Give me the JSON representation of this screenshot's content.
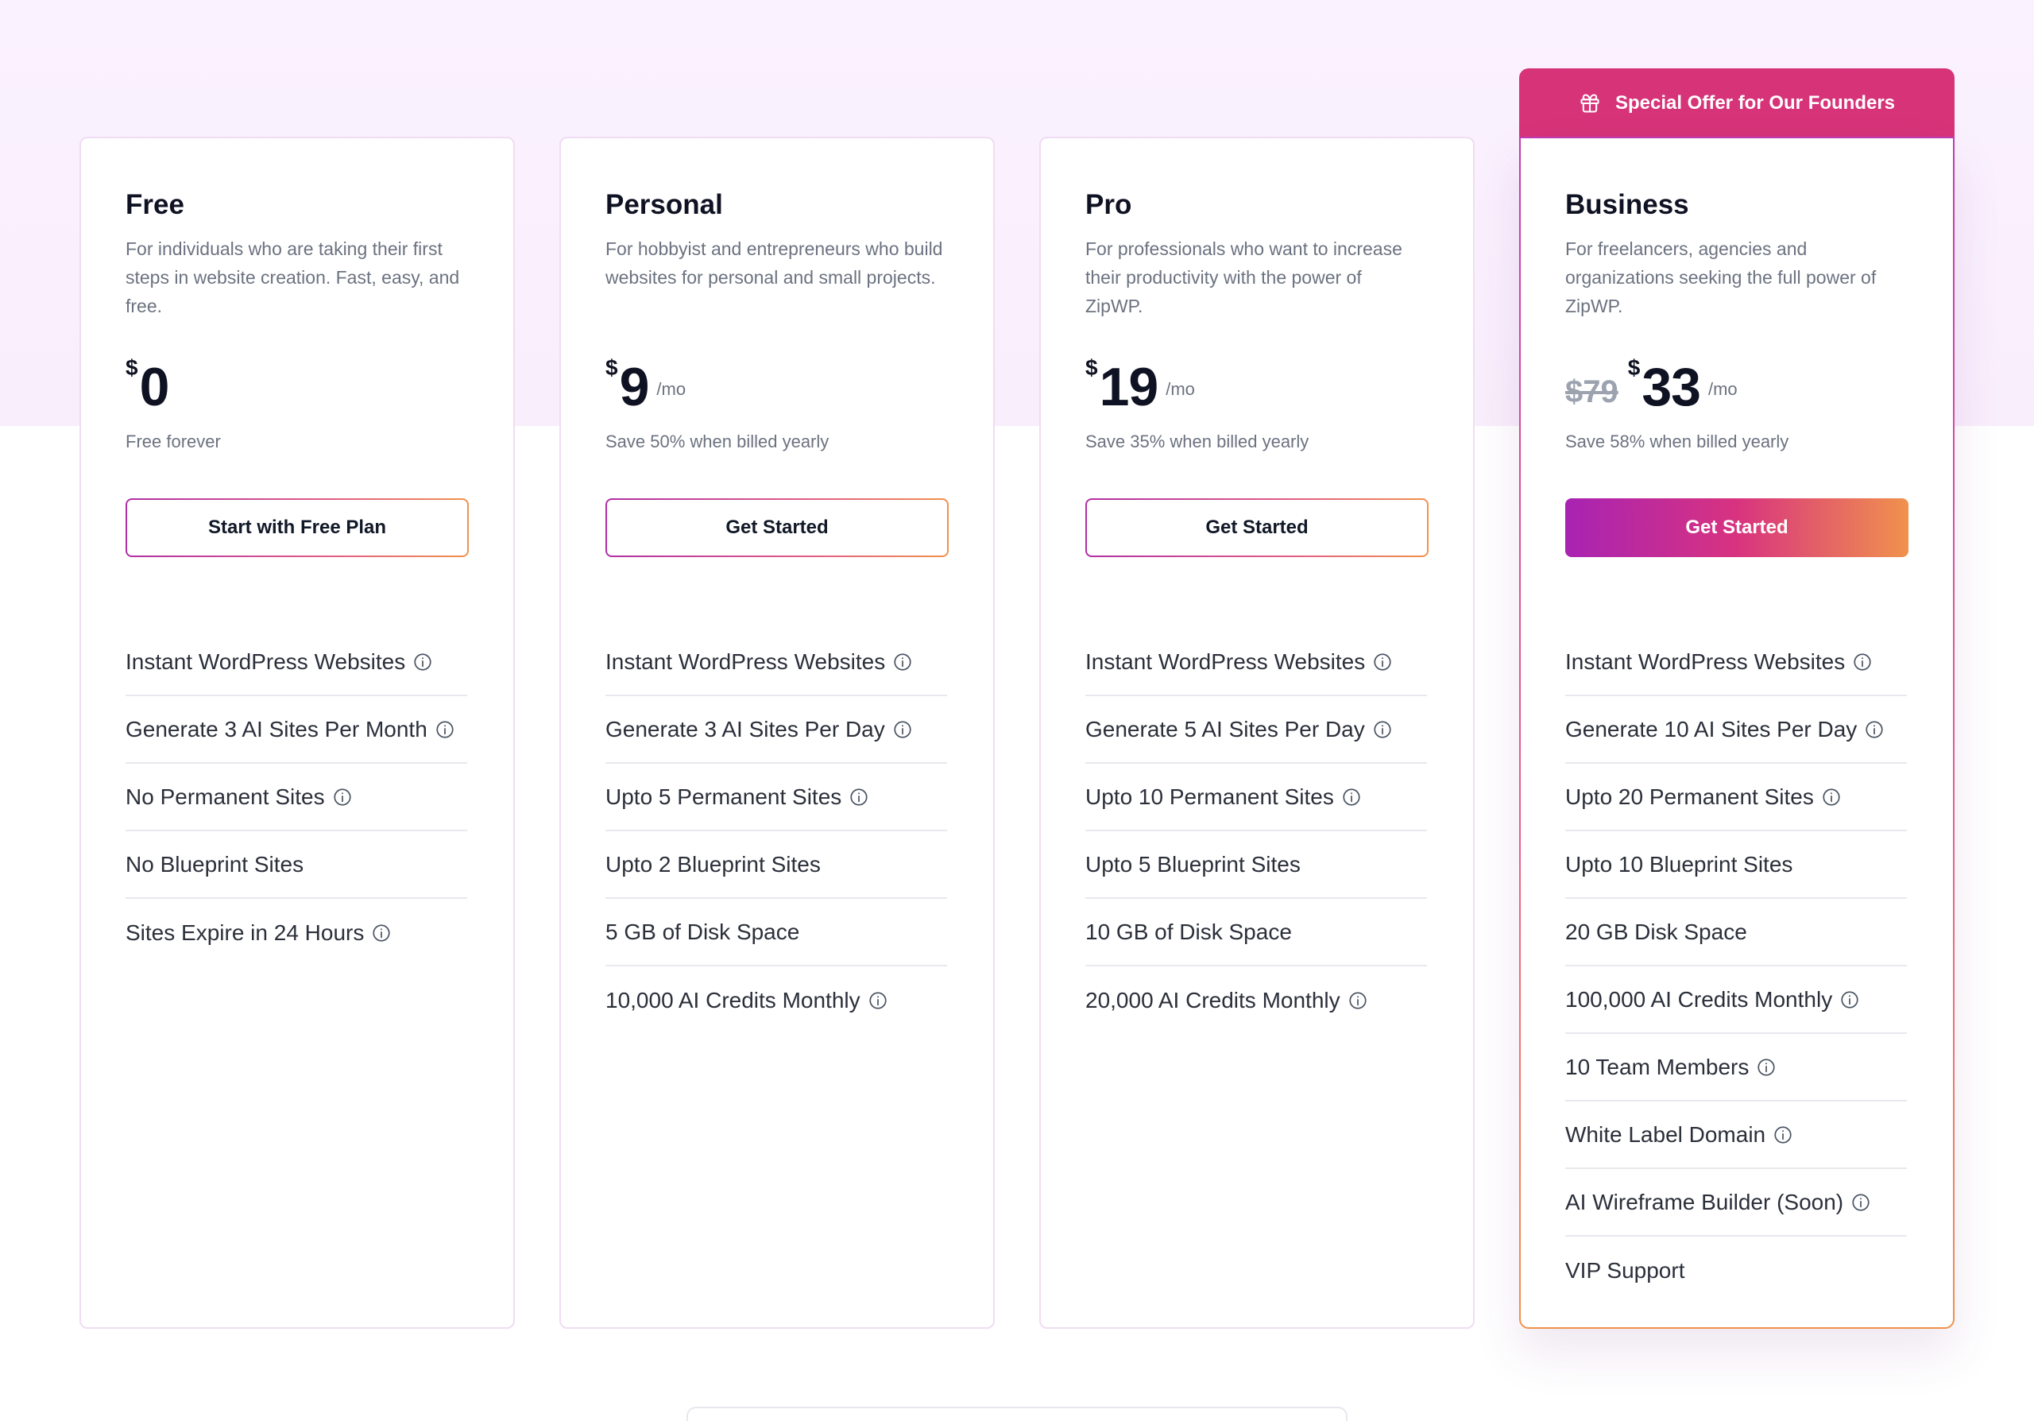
{
  "offer_banner": {
    "label": "Special Offer for Our Founders",
    "icon": "gift-icon"
  },
  "plans": [
    {
      "id": "free",
      "name": "Free",
      "description": "For individuals who are taking their first steps in website creation. Fast, easy, and free.",
      "old_price": "",
      "currency": "$",
      "amount": "0",
      "per": "",
      "billing_note": "Free forever",
      "cta_label": "Start with Free Plan",
      "featured": false,
      "features": [
        {
          "label": "Instant WordPress Websites",
          "info": true
        },
        {
          "label": "Generate 3 AI Sites Per Month",
          "info": true
        },
        {
          "label": "No Permanent Sites",
          "info": true
        },
        {
          "label": "No Blueprint Sites",
          "info": false
        },
        {
          "label": "Sites Expire in 24 Hours",
          "info": true
        }
      ]
    },
    {
      "id": "personal",
      "name": "Personal",
      "description": "For hobbyist and entrepreneurs who build websites for personal and small projects.",
      "old_price": "",
      "currency": "$",
      "amount": "9",
      "per": "/mo",
      "billing_note": "Save 50% when billed yearly",
      "cta_label": "Get Started",
      "featured": false,
      "features": [
        {
          "label": "Instant WordPress Websites",
          "info": true
        },
        {
          "label": "Generate 3 AI Sites Per Day",
          "info": true
        },
        {
          "label": "Upto 5 Permanent Sites",
          "info": true
        },
        {
          "label": "Upto 2 Blueprint Sites",
          "info": false
        },
        {
          "label": "5 GB of Disk Space",
          "info": false
        },
        {
          "label": "10,000 AI Credits Monthly",
          "info": true
        }
      ]
    },
    {
      "id": "pro",
      "name": "Pro",
      "description": "For professionals who want to increase their productivity with the power of ZipWP.",
      "old_price": "",
      "currency": "$",
      "amount": "19",
      "per": "/mo",
      "billing_note": "Save 35% when billed yearly",
      "cta_label": "Get Started",
      "featured": false,
      "features": [
        {
          "label": "Instant WordPress Websites",
          "info": true
        },
        {
          "label": "Generate 5 AI Sites Per Day",
          "info": true
        },
        {
          "label": "Upto 10 Permanent Sites",
          "info": true
        },
        {
          "label": "Upto 5 Blueprint Sites",
          "info": false
        },
        {
          "label": "10 GB of Disk Space",
          "info": false
        },
        {
          "label": "20,000 AI Credits Monthly",
          "info": true
        }
      ]
    },
    {
      "id": "business",
      "name": "Business",
      "description": "For freelancers, agencies and organizations seeking the full power of ZipWP.",
      "old_price": "$79",
      "currency": "$",
      "amount": "33",
      "per": "/mo",
      "billing_note": "Save 58% when billed yearly",
      "cta_label": "Get Started",
      "featured": true,
      "features": [
        {
          "label": "Instant WordPress Websites",
          "info": true
        },
        {
          "label": "Generate 10 AI Sites Per Day",
          "info": true
        },
        {
          "label": "Upto 20 Permanent Sites",
          "info": true
        },
        {
          "label": "Upto 10 Blueprint Sites",
          "info": false
        },
        {
          "label": "20 GB Disk Space",
          "info": false
        },
        {
          "label": "100,000 AI Credits Monthly",
          "info": true
        },
        {
          "label": "10 Team Members",
          "info": true
        },
        {
          "label": "White Label Domain",
          "info": true
        },
        {
          "label": "AI Wireframe Builder (Soon)",
          "info": true
        },
        {
          "label": "VIP Support",
          "info": false
        }
      ]
    }
  ],
  "colors": {
    "accent_pink": "#d63378",
    "accent_purple": "#a823b3",
    "accent_orange": "#f0924d",
    "hero_bg": "#fbf2ff"
  }
}
